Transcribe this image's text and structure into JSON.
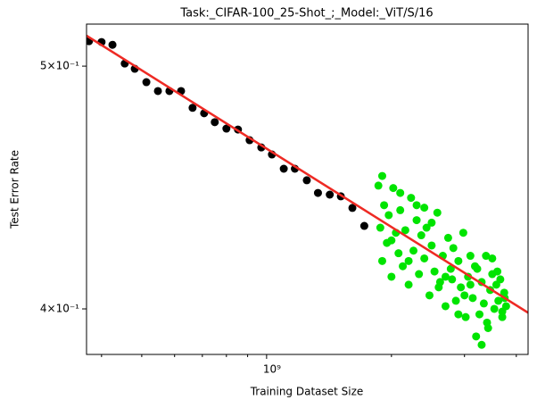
{
  "chart_data": {
    "type": "scatter",
    "title": "Task:_CIFAR-100_25-Shot_;_Model:_ViT/S/16",
    "xlabel": "Training Dataset Size",
    "ylabel": "Test Error Rate",
    "xscale": "log",
    "yscale": "log",
    "xlim": [
      368000000,
      4270000000
    ],
    "ylim": [
      0.3836,
      0.5197
    ],
    "xticks": [
      {
        "value": 1000000000,
        "label": "10⁹"
      }
    ],
    "xminorticks": [
      400000000,
      500000000,
      600000000,
      700000000,
      800000000,
      900000000,
      2000000000,
      3000000000,
      4000000000
    ],
    "yticks": [
      {
        "value": 0.4,
        "label": "4×10⁻¹"
      },
      {
        "value": 0.5,
        "label": "5×10⁻¹"
      }
    ],
    "series": [
      {
        "type": "scatter",
        "color": "#000000",
        "x": [
          373000000,
          400000000,
          425000000,
          455000000,
          481000000,
          513000000,
          547000000,
          583000000,
          622000000,
          663000000,
          707000000,
          750000000,
          800000000,
          853000000,
          910000000,
          971000000,
          1030000000,
          1100000000,
          1170000000,
          1250000000,
          1330000000,
          1420000000,
          1510000000,
          1610000000,
          1720000000
        ],
        "values": [
          0.5116,
          0.5112,
          0.5099,
          0.5012,
          0.4988,
          0.4927,
          0.4887,
          0.4887,
          0.4887,
          0.4812,
          0.4788,
          0.4749,
          0.4721,
          0.4717,
          0.4671,
          0.464,
          0.461,
          0.455,
          0.455,
          0.4502,
          0.445,
          0.4443,
          0.4436,
          0.4389,
          0.4317
        ]
      },
      {
        "type": "scatter",
        "color": "#00e400",
        "x": [
          1860000000,
          1880000000,
          1900000000,
          1920000000,
          1950000000,
          1970000000,
          2000000000,
          2020000000,
          2050000000,
          2080000000,
          2100000000,
          2130000000,
          2160000000,
          2200000000,
          2230000000,
          2260000000,
          2300000000,
          2330000000,
          2360000000,
          2400000000,
          2430000000,
          2470000000,
          2500000000,
          2540000000,
          2580000000,
          2620000000,
          2660000000,
          2700000000,
          2740000000,
          2780000000,
          2820000000,
          2860000000,
          2900000000,
          2940000000,
          2980000000,
          3020000000,
          3060000000,
          3100000000,
          3140000000,
          3180000000,
          3220000000,
          3260000000,
          3300000000,
          3340000000,
          3380000000,
          3420000000,
          3460000000,
          3500000000,
          3540000000,
          3580000000,
          3620000000,
          3660000000,
          3700000000,
          3740000000,
          3780000000,
          2000000000,
          2200000000,
          2400000000,
          2600000000,
          2800000000,
          3000000000,
          3200000000,
          3400000000,
          3600000000,
          3750000000,
          1900000000,
          2100000000,
          2300000000,
          2500000000,
          2700000000,
          2900000000,
          3100000000,
          3300000000,
          3500000000,
          3700000000
        ],
        "values": [
          0.448,
          0.431,
          0.418,
          0.44,
          0.425,
          0.436,
          0.412,
          0.447,
          0.429,
          0.421,
          0.438,
          0.416,
          0.43,
          0.409,
          0.443,
          0.422,
          0.434,
          0.413,
          0.428,
          0.419,
          0.431,
          0.405,
          0.424,
          0.414,
          0.437,
          0.41,
          0.42,
          0.401,
          0.427,
          0.415,
          0.423,
          0.403,
          0.418,
          0.408,
          0.429,
          0.397,
          0.412,
          0.42,
          0.404,
          0.416,
          0.415,
          0.398,
          0.41,
          0.402,
          0.42,
          0.393,
          0.407,
          0.413,
          0.4,
          0.409,
          0.403,
          0.411,
          0.397,
          0.406,
          0.401,
          0.426,
          0.418,
          0.439,
          0.408,
          0.411,
          0.405,
          0.39,
          0.395,
          0.414,
          0.404,
          0.452,
          0.445,
          0.44,
          0.433,
          0.412,
          0.398,
          0.409,
          0.387,
          0.419,
          0.399
        ]
      },
      {
        "type": "line",
        "color": "#ee2a24",
        "x": [
          368000000,
          4270000000
        ],
        "values": [
          0.5142,
          0.3986
        ]
      }
    ]
  }
}
